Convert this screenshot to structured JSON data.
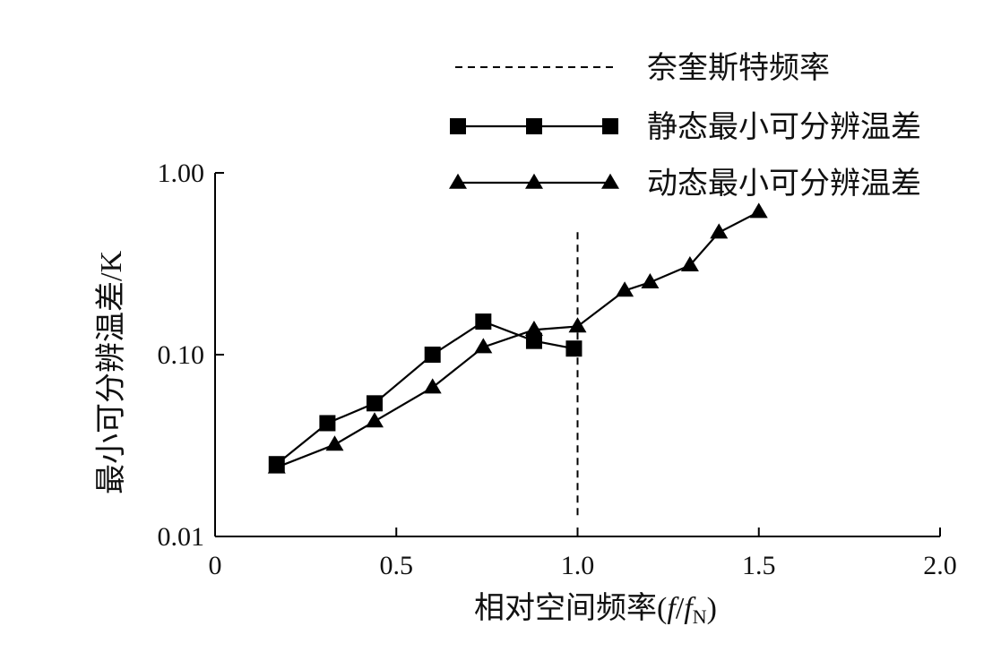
{
  "chart_data": {
    "type": "line",
    "xlabel": "相对空间频率",
    "xlabel_suffix": {
      "open": "(",
      "f1": "f",
      "slash": "/",
      "f2": "f",
      "sub": "N",
      "close": ")"
    },
    "ylabel": "最小可分辨温差/K",
    "y_scale": "log",
    "xlim": [
      0,
      2.0
    ],
    "ylim": [
      0.01,
      1.0
    ],
    "x_ticks": [
      0,
      0.5,
      1.0,
      1.5,
      2.0
    ],
    "x_tick_labels": [
      "0",
      "0.5",
      "1.0",
      "1.5",
      "2.0"
    ],
    "y_ticks": [
      0.01,
      0.1,
      1.0
    ],
    "y_tick_labels": [
      "0.01",
      "0.10",
      "1.00"
    ],
    "legend_position": "top-right",
    "series": [
      {
        "name": "静态最小可分辨温差",
        "marker": "square",
        "color": "#000000",
        "x": [
          0.17,
          0.31,
          0.44,
          0.6,
          0.74,
          0.88,
          0.99
        ],
        "y": [
          0.025,
          0.042,
          0.054,
          0.1,
          0.152,
          0.119,
          0.108
        ]
      },
      {
        "name": "动态最小可分辨温差",
        "marker": "triangle",
        "color": "#000000",
        "x": [
          0.17,
          0.33,
          0.44,
          0.6,
          0.74,
          0.88,
          1.0,
          1.13,
          1.2,
          1.31,
          1.39,
          1.5
        ],
        "y": [
          0.024,
          0.032,
          0.043,
          0.066,
          0.11,
          0.137,
          0.143,
          0.225,
          0.25,
          0.31,
          0.47,
          0.61
        ]
      }
    ],
    "reference_lines": [
      {
        "name": "奈奎斯特频率",
        "style": "dashed",
        "x": 1.0,
        "y_range": [
          0.0131,
          0.5
        ]
      }
    ]
  }
}
